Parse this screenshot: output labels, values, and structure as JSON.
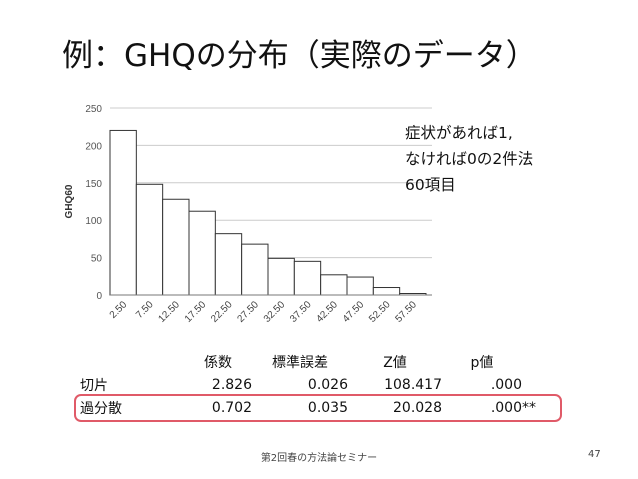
{
  "slide": {
    "title": "例：GHQの分布（実際のデータ）",
    "note_lines": [
      "症状があれば1,",
      "なければ0の2件法",
      "60項目"
    ],
    "footer": "第2回春の方法論セミナー",
    "page_number": "47",
    "highlight_color": "#e05a68"
  },
  "table": {
    "headers": [
      "",
      "係数",
      "標準誤差",
      "Z値",
      "p値",
      ""
    ],
    "rows": [
      [
        "切片",
        "2.826",
        "0.026",
        "108.417",
        ".000",
        ""
      ],
      [
        "過分散",
        "0.702",
        "0.035",
        "20.028",
        ".000",
        "**"
      ]
    ]
  },
  "chart_data": {
    "type": "bar",
    "ylabel": "GHQ60",
    "xlabel": "",
    "title": "",
    "ylim": [
      0,
      250
    ],
    "yticks": [
      0,
      50,
      100,
      150,
      200,
      250
    ],
    "categories": [
      "2.50",
      "7.50",
      "12.50",
      "17.50",
      "22.50",
      "27.50",
      "32.50",
      "37.50",
      "42.50",
      "47.50",
      "52.50",
      "57.50"
    ],
    "values": [
      220,
      148,
      128,
      112,
      82,
      68,
      49,
      45,
      27,
      24,
      10,
      2
    ],
    "grid": true,
    "bar_fill": "#ffffff",
    "bar_stroke": "#333333",
    "grid_color": "#cccccc"
  }
}
